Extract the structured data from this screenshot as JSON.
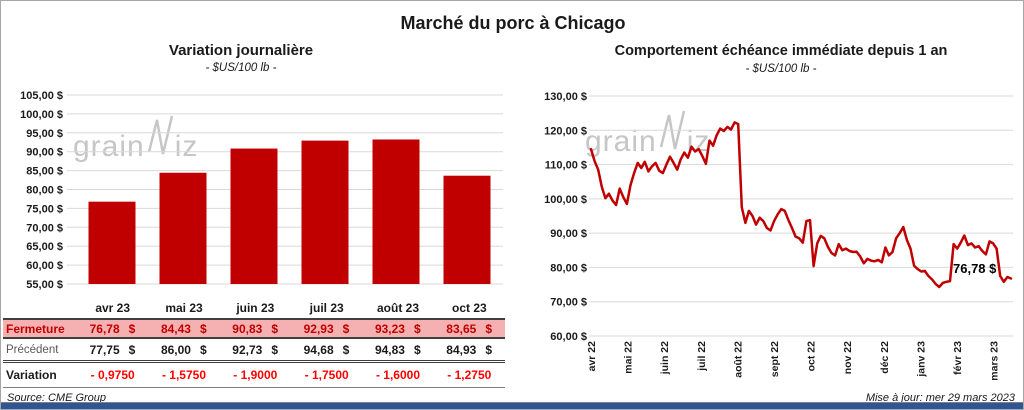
{
  "page": {
    "title": "Marché du porc à Chicago",
    "source_label": "Source: CME Group",
    "updated_label": "Mise à jour: mer 29 mars 2023",
    "watermark": {
      "prefix": "grain",
      "suffix": "iz",
      "zigzag_icon": "line-spike"
    },
    "colors": {
      "accent_red": "#c00000",
      "variation_red": "#ff0000",
      "fermeture_bg": "#f5b1b1",
      "grid_gray": "#d9d9d9",
      "bottom_bar_blue": "#2f5597"
    }
  },
  "chart_data": [
    {
      "type": "bar",
      "title": "Variation journalière",
      "subtitle": "- $US/100 lb -",
      "categories": [
        "avr 23",
        "mai 23",
        "juin 23",
        "juil 23",
        "août 23",
        "oct 23"
      ],
      "values": [
        76.78,
        84.43,
        90.83,
        92.93,
        93.23,
        83.65
      ],
      "ylim": [
        55,
        105
      ],
      "ytick_step": 5,
      "ytick_labels": [
        "105,00 $",
        "100,00 $",
        "95,00 $",
        "90,00 $",
        "85,00 $",
        "80,00 $",
        "75,00 $",
        "70,00 $",
        "65,00 $",
        "60,00 $",
        "55,00 $"
      ],
      "bar_color": "#c00000",
      "grid": true,
      "legend": "none"
    },
    {
      "type": "line",
      "title": "Comportement échéance immédiate depuis 1 an",
      "subtitle": "- $US/100 lb -",
      "x_tick_labels": [
        "avr 22",
        "mai 22",
        "juin 22",
        "juil 22",
        "août 22",
        "sept 22",
        "oct 22",
        "nov 22",
        "déc 22",
        "janv 23",
        "févr 23",
        "mars 23"
      ],
      "values": [
        114.5,
        111,
        108.5,
        103.5,
        100.2,
        101.5,
        99.5,
        98.2,
        103,
        100.5,
        98.5,
        104,
        107.5,
        110.5,
        109,
        110.8,
        108,
        109.5,
        110.5,
        108.2,
        107.5,
        110,
        112.3,
        110.5,
        108.5,
        111.5,
        113.5,
        112,
        115.2,
        113.8,
        114.5,
        112.5,
        110.2,
        117,
        115.5,
        118.5,
        120.5,
        119.8,
        121,
        120.2,
        122.3,
        121.8,
        97.5,
        93,
        96.5,
        95,
        92.5,
        94.5,
        93.5,
        91.5,
        90.8,
        93.5,
        95.5,
        97,
        96.5,
        93.8,
        91.5,
        89,
        88.5,
        87.2,
        93.5,
        93.8,
        80.4,
        87,
        89.2,
        88.5,
        86,
        84.2,
        83.5,
        86.8,
        85,
        85.5,
        84.8,
        84.5,
        84.6,
        83.2,
        81.2,
        82.5,
        82,
        81.8,
        82.2,
        81.5,
        85.8,
        83.5,
        84.5,
        88.5,
        90,
        91.8,
        88,
        85.5,
        80.5,
        79.5,
        78.8,
        79,
        77.5,
        76.5,
        75.2,
        74.3,
        75.5,
        75.8,
        76,
        86.8,
        85.5,
        87.2,
        89.3,
        86.5,
        87,
        85.8,
        86.2,
        84.8,
        83.8,
        87.6,
        87,
        85.5,
        77.5,
        75.8,
        77.2,
        76.78
      ],
      "ylim": [
        60,
        130
      ],
      "ytick_step": 10,
      "ytick_labels": [
        "130,00 $",
        "120,00 $",
        "110,00 $",
        "100,00 $",
        "90,00 $",
        "80,00 $",
        "70,00 $",
        "60,00 $"
      ],
      "line_color": "#c00000",
      "end_label": "76,78 $",
      "grid": true,
      "legend": "none"
    }
  ],
  "table": {
    "columns": [
      "avr 23",
      "mai 23",
      "juin 23",
      "juil 23",
      "août 23",
      "oct 23"
    ],
    "currency_symbol": "$",
    "rows": [
      {
        "key": "fermeture",
        "label": "Fermeture",
        "values": [
          "76,78",
          "84,43",
          "90,83",
          "92,93",
          "93,23",
          "83,65"
        ],
        "currency": true
      },
      {
        "key": "precedent",
        "label": "Précédent",
        "values": [
          "77,75",
          "86,00",
          "92,73",
          "94,68",
          "94,83",
          "84,93"
        ],
        "currency": true
      },
      {
        "key": "variation",
        "label": "Variation",
        "values": [
          "- 0,9750",
          "- 1,5750",
          "- 1,9000",
          "- 1,7500",
          "- 1,6000",
          "- 1,2750"
        ],
        "currency": false
      }
    ]
  }
}
